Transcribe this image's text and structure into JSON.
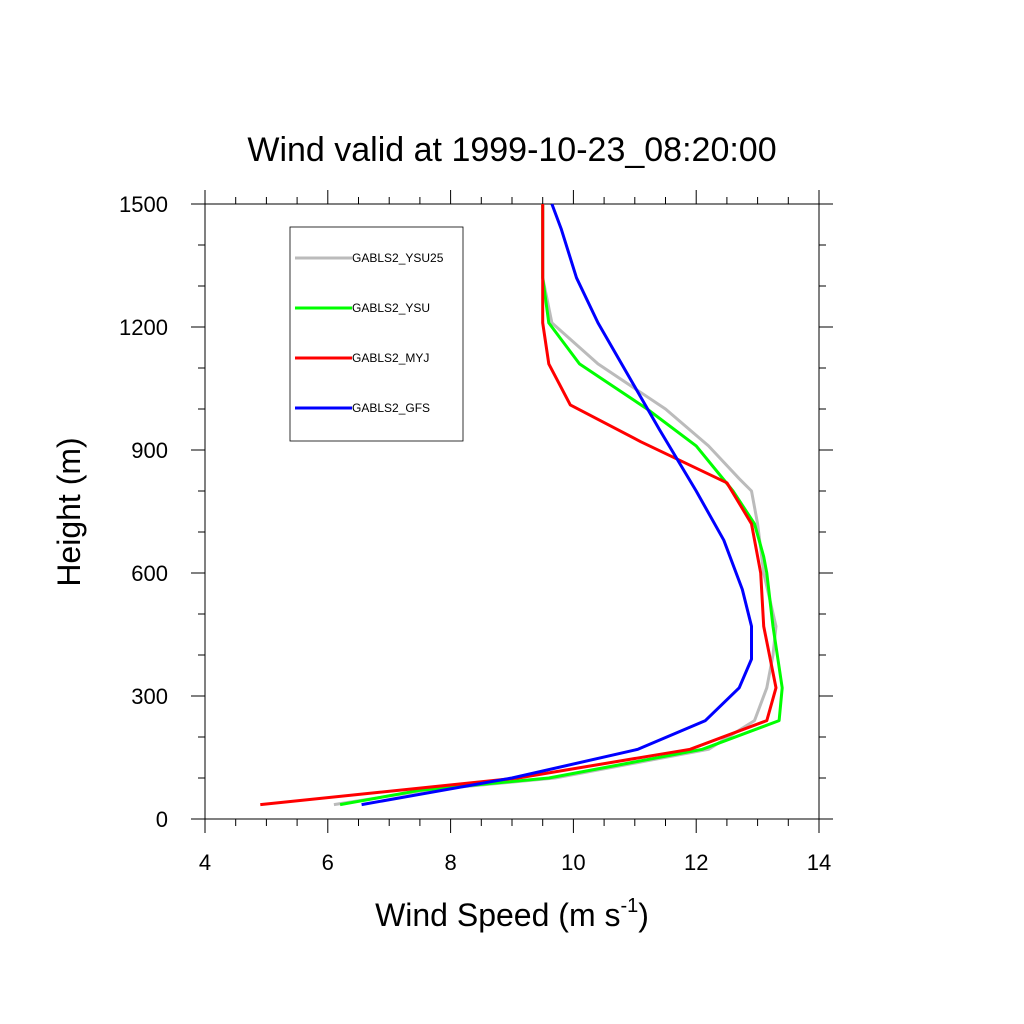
{
  "chart_data": {
    "type": "line",
    "title": "Wind valid at 1999-10-23_08:20:00",
    "xlabel": "Wind Speed (m s",
    "xlabel_sup": "-1",
    "xlabel_end": ")",
    "ylabel": "Height (m)",
    "xlim": [
      4,
      14
    ],
    "ylim": [
      0,
      1500
    ],
    "xticks": [
      4,
      6,
      8,
      10,
      12,
      14
    ],
    "yticks": [
      0,
      300,
      600,
      900,
      1200,
      1500
    ],
    "grid": false,
    "legend_position": "top-left",
    "series": [
      {
        "name": "GABLS2_YSU25",
        "color": "#bbbbbb",
        "x": [
          6.1,
          7.6,
          9.7,
          12.2,
          12.95,
          13.15,
          13.25,
          13.3,
          13.1,
          13.0,
          12.9,
          12.7,
          12.2,
          11.5,
          10.4,
          9.65,
          9.5,
          9.5
        ],
        "y": [
          35,
          70,
          100,
          170,
          240,
          320,
          400,
          470,
          600,
          720,
          800,
          830,
          910,
          1000,
          1110,
          1210,
          1320,
          1500
        ]
      },
      {
        "name": "GABLS2_YSU",
        "color": "#00ff00",
        "x": [
          6.2,
          7.5,
          9.6,
          12.1,
          13.35,
          13.4,
          13.25,
          13.15,
          13.1,
          12.95,
          12.6,
          12.0,
          11.2,
          10.1,
          9.6,
          9.5,
          9.5
        ],
        "y": [
          35,
          70,
          100,
          170,
          240,
          320,
          470,
          600,
          640,
          720,
          800,
          910,
          1000,
          1110,
          1210,
          1320,
          1500
        ]
      },
      {
        "name": "GABLS2_MYJ",
        "color": "#ff0000",
        "x": [
          4.9,
          9.1,
          11.9,
          13.15,
          13.3,
          13.1,
          13.05,
          12.9,
          12.5,
          11.1,
          9.95,
          9.6,
          9.5,
          9.5,
          9.5
        ],
        "y": [
          35,
          100,
          170,
          240,
          320,
          470,
          600,
          720,
          820,
          920,
          1010,
          1110,
          1210,
          1320,
          1500
        ]
      },
      {
        "name": "GABLS2_GFS",
        "color": "#0000ff",
        "x": [
          6.55,
          9.0,
          11.05,
          12.15,
          12.7,
          12.9,
          12.9,
          12.75,
          12.45,
          12.0,
          11.4,
          10.4,
          10.05,
          9.8,
          9.65
        ],
        "y": [
          35,
          100,
          170,
          240,
          320,
          390,
          470,
          560,
          680,
          800,
          950,
          1210,
          1320,
          1440,
          1500
        ]
      }
    ]
  }
}
